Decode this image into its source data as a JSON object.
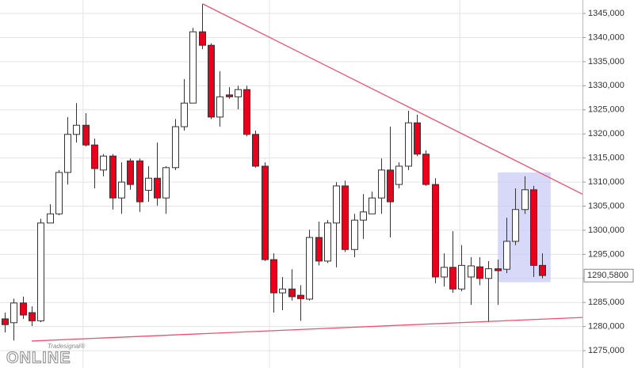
{
  "chart_data": {
    "type": "candlestick",
    "ylim": [
      1271.4,
      1347.8
    ],
    "xlim": [
      -0.53,
      64.5
    ],
    "yticks": [
      {
        "value": 1275,
        "label": "1275,000"
      },
      {
        "value": 1280,
        "label": "1280,000"
      },
      {
        "value": 1285,
        "label": "1285,000"
      },
      {
        "value": 1290,
        "label": "1290,000"
      },
      {
        "value": 1295,
        "label": "1295,000"
      },
      {
        "value": 1300,
        "label": "1300,000"
      },
      {
        "value": 1305,
        "label": "1305,000"
      },
      {
        "value": 1310,
        "label": "1310,000"
      },
      {
        "value": 1315,
        "label": "1315,000"
      },
      {
        "value": 1320,
        "label": "1320,000"
      },
      {
        "value": 1325,
        "label": "1325,000"
      },
      {
        "value": 1330,
        "label": "1330,000"
      },
      {
        "value": 1335,
        "label": "1335,000"
      },
      {
        "value": 1340,
        "label": "1340,000"
      },
      {
        "value": 1345,
        "label": "1345,000"
      }
    ],
    "xgrid": [
      8.75,
      29.55,
      50.8
    ],
    "grid": true,
    "up_color": "#ffffff",
    "down_color": "#e8001c",
    "open": [
      1281.6,
      1280.8,
      1284.9,
      1282.9,
      1281.2,
      1301.5,
      1303.4,
      1312.0,
      1319.9,
      1321.8,
      1317.7,
      1312.5,
      1315.4,
      1306.7,
      1314.4,
      1314.4,
      1308.3,
      1310.8,
      1306.7,
      1313.0,
      1321.5,
      1326.4,
      1341.2,
      1338.4,
      1323.5,
      1328.1,
      1327.7,
      1329.2,
      1319.9,
      1313.3,
      1293.9,
      1287.0,
      1287.8,
      1286.5,
      1285.7,
      1298.5,
      1293.6,
      1301.5,
      1309.2,
      1296.0,
      1302.1,
      1303.4,
      1306.7,
      1312.5,
      1309.5,
      1313.3,
      1322.3,
      1315.8,
      1309.5,
      1290.3,
      1292.3,
      1287.8,
      1290.3,
      1292.4,
      1290.0,
      1292.0,
      1291.9,
      1297.7,
      1304.3,
      1308.4,
      1292.7
    ],
    "high": [
      1282.9,
      1285.8,
      1286.2,
      1284.2,
      1302.4,
      1305.4,
      1312.5,
      1323.5,
      1326.4,
      1324.3,
      1319.0,
      1315.8,
      1315.8,
      1314.1,
      1314.9,
      1314.9,
      1313.3,
      1318.2,
      1313.3,
      1323.1,
      1331.4,
      1342.0,
      1347.0,
      1338.8,
      1333.0,
      1329.7,
      1330.0,
      1330.0,
      1320.7,
      1314.1,
      1295.2,
      1290.3,
      1291.9,
      1288.6,
      1300.1,
      1301.8,
      1302.1,
      1310.0,
      1310.3,
      1303.4,
      1307.5,
      1308.0,
      1314.9,
      1321.5,
      1314.1,
      1324.8,
      1324.0,
      1316.6,
      1310.8,
      1295.2,
      1299.8,
      1296.9,
      1294.4,
      1294.4,
      1293.6,
      1293.9,
      1302.6,
      1308.7,
      1311.2,
      1309.2,
      1295.2
    ],
    "low": [
      1278.8,
      1277.1,
      1281.6,
      1280.1,
      1280.9,
      1301.5,
      1303.1,
      1309.5,
      1318.2,
      1317.4,
      1308.7,
      1311.2,
      1304.3,
      1303.4,
      1308.4,
      1303.8,
      1305.9,
      1305.1,
      1303.4,
      1312.5,
      1320.7,
      1326.4,
      1337.6,
      1323.1,
      1321.5,
      1327.3,
      1325.1,
      1319.5,
      1313.0,
      1293.6,
      1282.9,
      1283.4,
      1285.4,
      1281.2,
      1285.4,
      1292.7,
      1293.2,
      1292.3,
      1295.5,
      1294.4,
      1298.2,
      1303.4,
      1303.4,
      1298.5,
      1308.7,
      1312.5,
      1315.4,
      1309.2,
      1289.0,
      1288.3,
      1287.0,
      1287.3,
      1284.5,
      1288.6,
      1280.9,
      1284.5,
      1291.1,
      1296.9,
      1303.4,
      1290.3,
      1290.0
    ],
    "close": [
      1280.4,
      1284.9,
      1282.4,
      1281.2,
      1301.5,
      1303.4,
      1312.0,
      1319.9,
      1321.8,
      1317.7,
      1312.8,
      1315.4,
      1306.7,
      1310.0,
      1309.5,
      1305.9,
      1310.8,
      1306.7,
      1313.0,
      1321.5,
      1326.4,
      1341.2,
      1338.4,
      1323.5,
      1327.7,
      1327.7,
      1329.2,
      1319.9,
      1313.3,
      1293.9,
      1287.0,
      1287.8,
      1286.2,
      1285.8,
      1298.5,
      1293.6,
      1301.5,
      1309.2,
      1296.0,
      1302.1,
      1303.8,
      1306.7,
      1312.5,
      1305.9,
      1313.3,
      1322.3,
      1315.8,
      1309.5,
      1290.3,
      1292.3,
      1287.8,
      1292.7,
      1292.6,
      1290.0,
      1292.0,
      1291.6,
      1297.7,
      1304.3,
      1308.4,
      1292.7,
      1290.6
    ],
    "trendlines": [
      {
        "color": "#f0506e",
        "x": [
          22.1,
          64.5
        ],
        "y": [
          1347.0,
          1307.5
        ]
      },
      {
        "color": "#f0506e",
        "x": [
          3.0,
          64.5
        ],
        "y": [
          1277.0,
          1281.9
        ]
      }
    ],
    "highlight": {
      "color": "#c8c8f5",
      "x": [
        55.05,
        60.95
      ],
      "y": [
        1289.2,
        1312.0
      ]
    },
    "last_price": {
      "value": 1290.58,
      "label": "1290,5800"
    },
    "watermark": {
      "brand": "Tradesignal®",
      "product": "ONLINE"
    }
  }
}
